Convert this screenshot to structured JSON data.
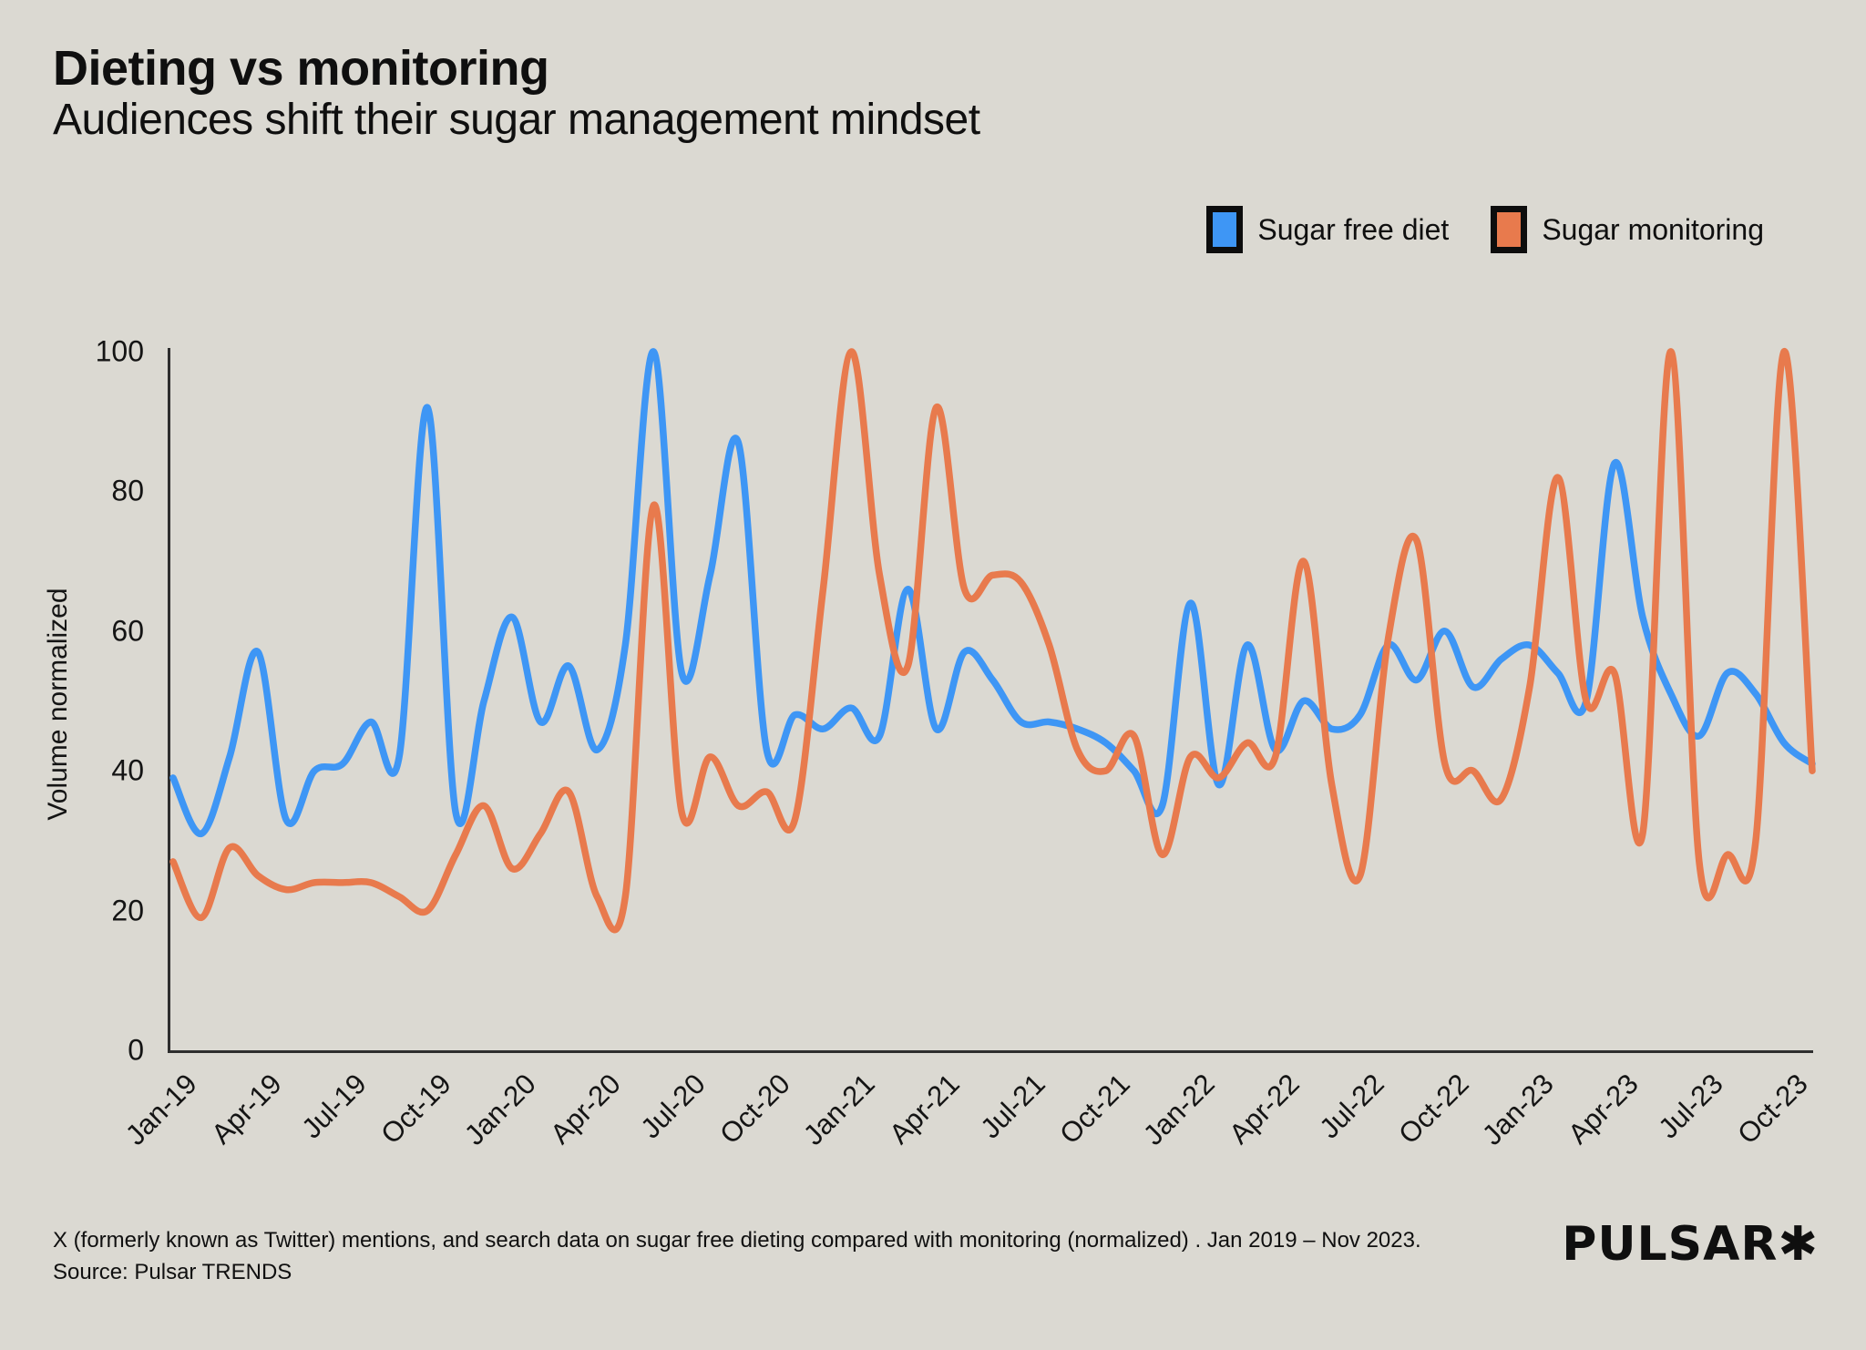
{
  "header": {
    "title": "Dieting vs monitoring",
    "subtitle": "Audiences shift their sugar management mindset"
  },
  "legend": {
    "items": [
      {
        "label": "Sugar free diet",
        "color": "#3e96f5"
      },
      {
        "label": "Sugar monitoring",
        "color": "#e87a4d"
      }
    ]
  },
  "y_axis": {
    "label": "Volume normalized"
  },
  "footer": {
    "line1": "X (formerly known as Twitter) mentions, and search data on sugar free dieting compared with monitoring (normalized) . Jan 2019 – Nov 2023.",
    "line2": "Source: Pulsar TRENDS",
    "logo": "PULSAR",
    "logo_mark": "✱"
  },
  "colors": {
    "background": "#dbd9d2",
    "axis": "#2e2e2e",
    "blue": "#3e96f5",
    "orange": "#e87a4d"
  },
  "chart_data": {
    "type": "line",
    "title": "Dieting vs monitoring",
    "xlabel": "",
    "ylabel": "Volume normalized",
    "ylim": [
      0,
      100
    ],
    "yticks": [
      0,
      20,
      40,
      60,
      80,
      100
    ],
    "grid": false,
    "smoothing": "spline",
    "legend_position": "top-right",
    "x_tick_every": 3,
    "x": [
      "Jan-19",
      "Feb-19",
      "Mar-19",
      "Apr-19",
      "May-19",
      "Jun-19",
      "Jul-19",
      "Aug-19",
      "Sep-19",
      "Oct-19",
      "Nov-19",
      "Dec-19",
      "Jan-20",
      "Feb-20",
      "Mar-20",
      "Apr-20",
      "May-20",
      "Jun-20",
      "Jul-20",
      "Aug-20",
      "Sep-20",
      "Oct-20",
      "Nov-20",
      "Dec-20",
      "Jan-21",
      "Feb-21",
      "Mar-21",
      "Apr-21",
      "May-21",
      "Jun-21",
      "Jul-21",
      "Aug-21",
      "Sep-21",
      "Oct-21",
      "Nov-21",
      "Dec-21",
      "Jan-22",
      "Feb-22",
      "Mar-22",
      "Apr-22",
      "May-22",
      "Jun-22",
      "Jul-22",
      "Aug-22",
      "Sep-22",
      "Oct-22",
      "Nov-22",
      "Dec-22",
      "Jan-23",
      "Feb-23",
      "Mar-23",
      "Apr-23",
      "May-23",
      "Jun-23",
      "Jul-23",
      "Aug-23",
      "Sep-23",
      "Oct-23",
      "Nov-23"
    ],
    "series": [
      {
        "name": "Sugar free diet",
        "color": "#3e96f5",
        "values": [
          39,
          31,
          42,
          57,
          33,
          40,
          41,
          47,
          42,
          92,
          34,
          50,
          62,
          47,
          55,
          43,
          58,
          100,
          54,
          68,
          87,
          43,
          48,
          46,
          49,
          45,
          66,
          46,
          57,
          53,
          47,
          47,
          46,
          44,
          40,
          35,
          64,
          38,
          58,
          43,
          50,
          46,
          48,
          58,
          53,
          60,
          52,
          56,
          58,
          54,
          50,
          84,
          62,
          51,
          45,
          54,
          51,
          44,
          41
        ]
      },
      {
        "name": "Sugar monitoring",
        "color": "#e87a4d",
        "values": [
          27,
          19,
          29,
          25,
          23,
          24,
          24,
          24,
          22,
          20,
          28,
          35,
          26,
          31,
          37,
          22,
          22,
          78,
          34,
          42,
          35,
          37,
          33,
          66,
          100,
          68,
          55,
          92,
          66,
          68,
          67,
          58,
          43,
          40,
          45,
          28,
          42,
          39,
          44,
          42,
          70,
          38,
          25,
          59,
          73,
          41,
          40,
          36,
          52,
          82,
          50,
          54,
          31,
          100,
          27,
          28,
          30,
          100,
          40
        ]
      }
    ]
  }
}
